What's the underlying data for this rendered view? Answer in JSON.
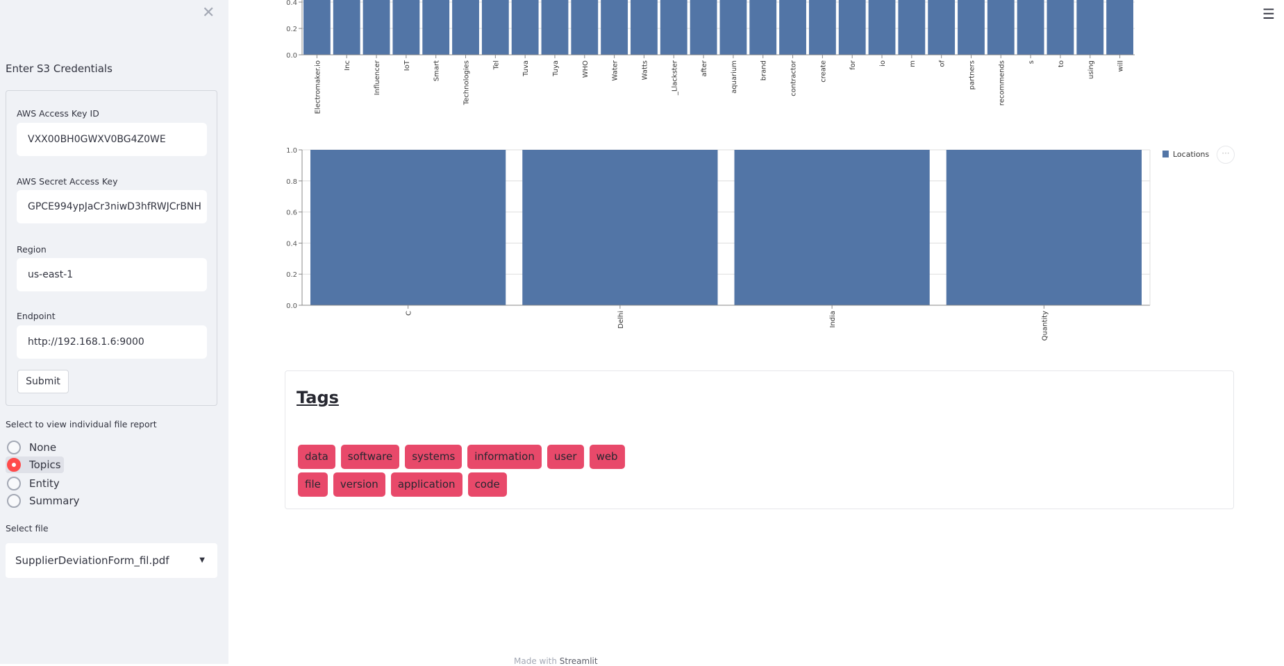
{
  "sidebar": {
    "title": "Enter S3 Credentials",
    "fields": [
      {
        "label": "AWS Access Key ID",
        "value": "VXX00BH0GWXV0BG4Z0WE"
      },
      {
        "label": "AWS Secret Access Key",
        "value": "GPCE994ypJaCr3niwD3hfRWJCrBNH"
      },
      {
        "label": "Region",
        "value": "us-east-1"
      },
      {
        "label": "Endpoint",
        "value": "http://192.168.1.6:9000"
      }
    ],
    "submit_label": "Submit",
    "radio_label": "Select to view individual file report",
    "radio_options": [
      "None",
      "Topics",
      "Entity",
      "Summary"
    ],
    "radio_selected": "Topics",
    "file_label": "Select file",
    "file_value": "SupplierDeviationForm_fil.pdf"
  },
  "chart_data": [
    {
      "type": "bar",
      "categories": [
        "Electromaker.io",
        "Inc",
        "Influencer",
        "IoT",
        "Smart",
        "Technologies",
        "Tel",
        "Tuva",
        "Tuya",
        "WHO",
        "Water",
        "Watts",
        "_Llackster",
        "after",
        "aquarium",
        "brand",
        "contractor",
        "create",
        "for",
        "io",
        "m",
        "of",
        "partners",
        "recommends",
        "s",
        "to",
        "using",
        "will"
      ],
      "values": [
        1,
        1,
        1,
        1,
        1,
        1,
        1,
        1,
        1,
        1,
        1,
        1,
        1,
        1,
        1,
        1,
        1,
        1,
        1,
        1,
        1,
        1,
        1,
        1,
        1,
        1,
        1,
        1
      ],
      "yticks": [
        "0.0",
        "0.2",
        "0.4"
      ],
      "ylim": [
        0,
        1
      ],
      "color": "#5275a6"
    },
    {
      "type": "bar",
      "categories": [
        "C",
        "Delhi",
        "India",
        "Quantity"
      ],
      "values": [
        1,
        1,
        1,
        1
      ],
      "yticks": [
        "0.0",
        "0.2",
        "0.4",
        "0.6",
        "0.8",
        "1.0"
      ],
      "ylim": [
        0,
        1
      ],
      "legend": "Locations",
      "legend_position": "right",
      "color": "#5275a6"
    }
  ],
  "tags": {
    "title": "Tags",
    "items": [
      "data",
      "software",
      "systems",
      "information",
      "user",
      "web",
      "file",
      "version",
      "application",
      "code"
    ],
    "color": "#e8496a"
  },
  "footer": {
    "prefix": "Made with ",
    "brand": "Streamlit"
  }
}
